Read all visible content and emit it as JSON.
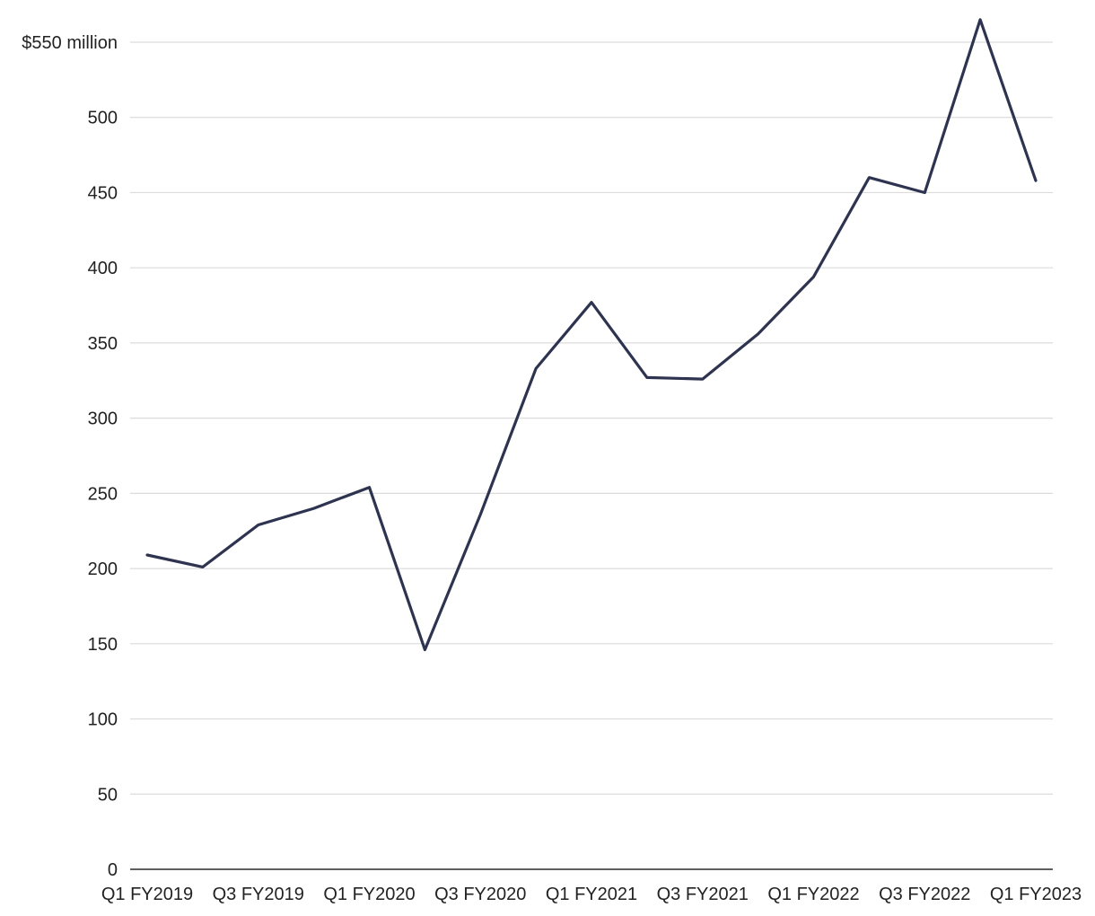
{
  "chart_data": {
    "type": "line",
    "title": "",
    "xlabel": "",
    "ylabel": "",
    "ylim": [
      0,
      550
    ],
    "y_ticks": [
      0,
      50,
      100,
      150,
      200,
      250,
      300,
      350,
      400,
      450,
      500,
      550
    ],
    "y_tick_labels": [
      "0",
      "50",
      "100",
      "150",
      "200",
      "250",
      "300",
      "350",
      "400",
      "450",
      "500",
      "$550 million"
    ],
    "x": [
      "Q1 FY2019",
      "Q2 FY2019",
      "Q3 FY2019",
      "Q4 FY2019",
      "Q1 FY2020",
      "Q2 FY2020",
      "Q3 FY2020",
      "Q4 FY2020",
      "Q1 FY2021",
      "Q2 FY2021",
      "Q3 FY2021",
      "Q4 FY2021",
      "Q1 FY2022",
      "Q2 FY2022",
      "Q3 FY2022",
      "Q4 FY2022",
      "Q1 FY2023"
    ],
    "x_tick_labels": [
      "Q1 FY2019",
      "Q3 FY2019",
      "Q1 FY2020",
      "Q3 FY2020",
      "Q1 FY2021",
      "Q3 FY2021",
      "Q1 FY2022",
      "Q3 FY2022",
      "Q1 FY2023"
    ],
    "series": [
      {
        "values": [
          209,
          201,
          229,
          240,
          254,
          146,
          236,
          333,
          377,
          327,
          326,
          356,
          394,
          460,
          450,
          565,
          458
        ],
        "color": "#2e3450"
      }
    ],
    "grid": true,
    "legend": "none"
  }
}
